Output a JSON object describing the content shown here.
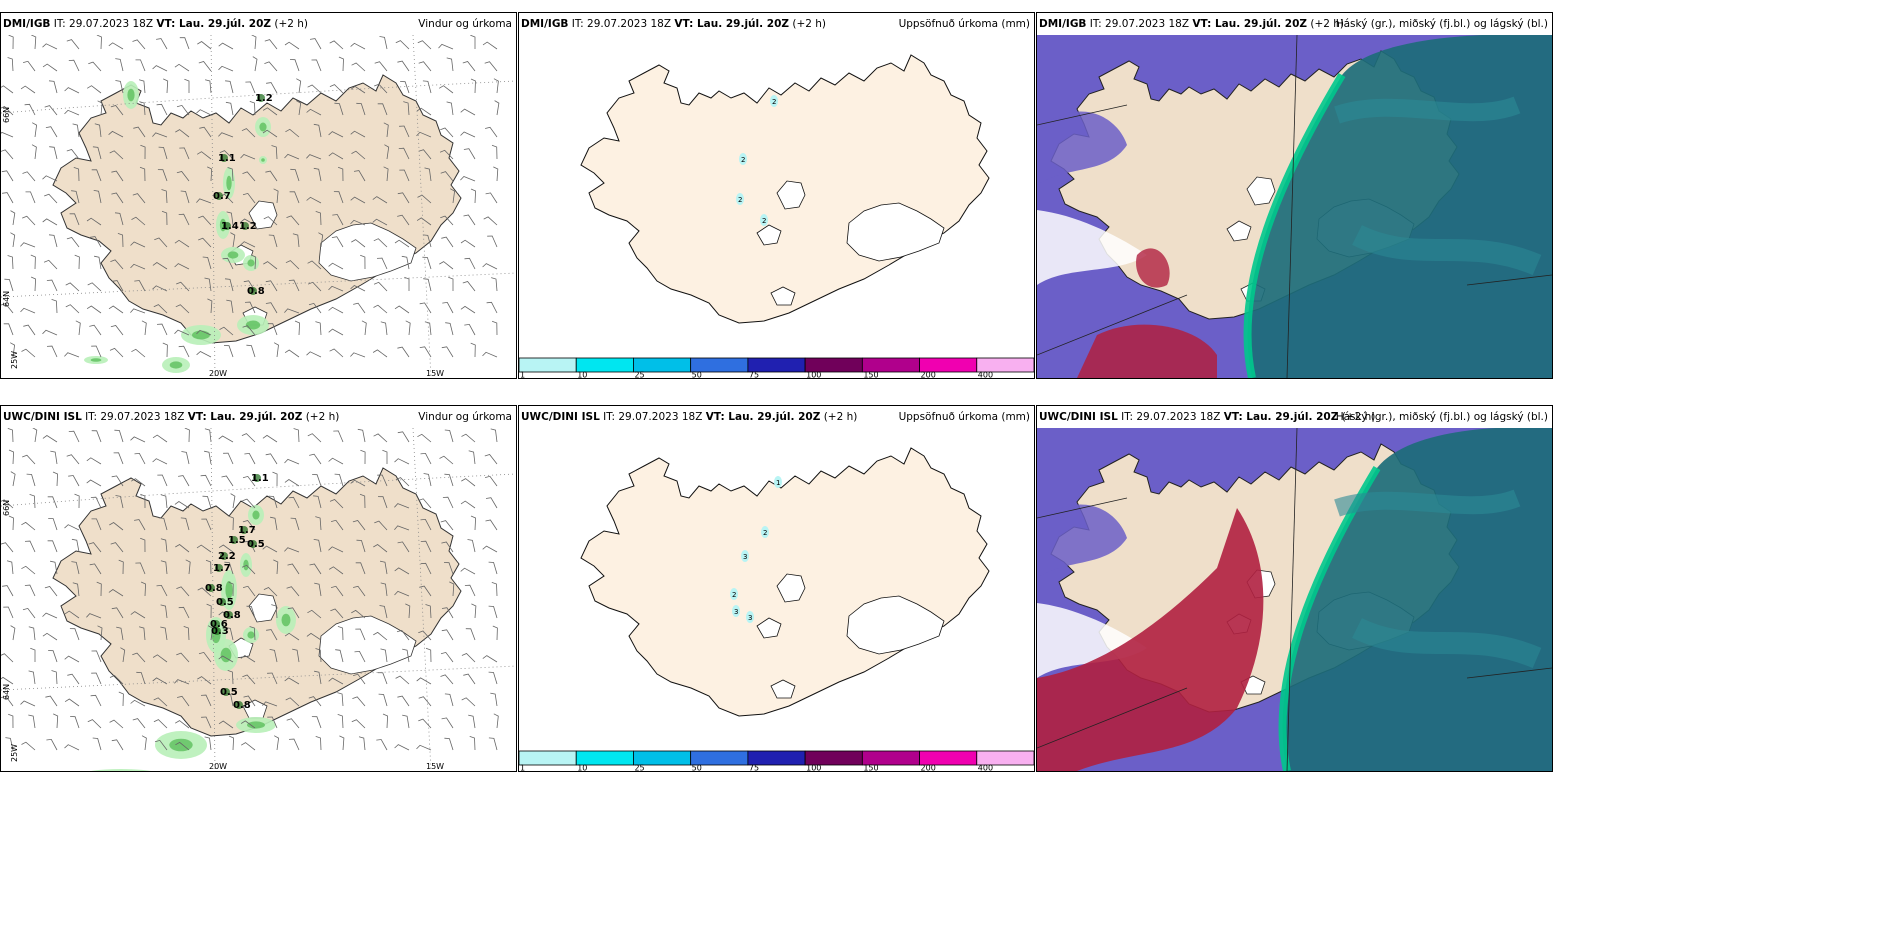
{
  "rows": [
    {
      "model": "DMI/IGB",
      "it_label": "IT:",
      "it": "29.07.2023 18Z",
      "vt_label": "VT: Lau. 29.júl. 20Z",
      "lead": "(+2 h)",
      "precip_labels": [
        "1.2",
        "1.1",
        "0.7",
        "1.4",
        "1.2",
        "0.8"
      ],
      "accum_labels": [
        "2",
        "2",
        "2",
        "2"
      ]
    },
    {
      "model": "UWC/DINI ISL",
      "it_label": "IT:",
      "it": "29.07.2023 18Z",
      "vt_label": "VT: Lau. 29.júl. 20Z",
      "lead": "(+2 h)",
      "precip_labels": [
        "1.1",
        "1.7",
        "1.5",
        "0.5",
        "2.2",
        "1.7",
        "0.8",
        "0.5",
        "0.6",
        "0.8",
        "0.3",
        "0.5",
        "0.8"
      ],
      "accum_labels": [
        "1",
        "2",
        "3",
        "2",
        "3",
        "3"
      ]
    }
  ],
  "panel_titles": {
    "wind": "Vindur og úrkoma",
    "accum": "Uppsöfnuð úrkoma (mm)",
    "cloud": "Háský (gr.), miðský (fj.bl.) og lágský (bl.)"
  },
  "grid_labels": {
    "lat_top": "66N",
    "lat_mid": "64N",
    "lon_west": "25W",
    "lon_20": "20W",
    "lon_15": "15W"
  },
  "colorbar": {
    "ticks": [
      "1",
      "10",
      "25",
      "50",
      "75",
      "100",
      "150",
      "200",
      "400"
    ],
    "colors": [
      "#b8f4f4",
      "#00e6f0",
      "#00bfe8",
      "#2f6fe0",
      "#2020b0",
      "#70005a",
      "#b0008c",
      "#f000b0",
      "#f8b0f0"
    ]
  },
  "colors": {
    "land": "#efdfca",
    "land_accum": "#fdf1e2",
    "glacier": "#ffffff",
    "precip_light": "#b8f0b8",
    "precip_mid": "#5cbf5c",
    "precip_dark": "#1a6a1a",
    "cloud_low": "#6b5fc8",
    "cloud_mid": "#1d6d7a",
    "cloud_high": "#00c88c",
    "cloud_red": "#b02040"
  }
}
